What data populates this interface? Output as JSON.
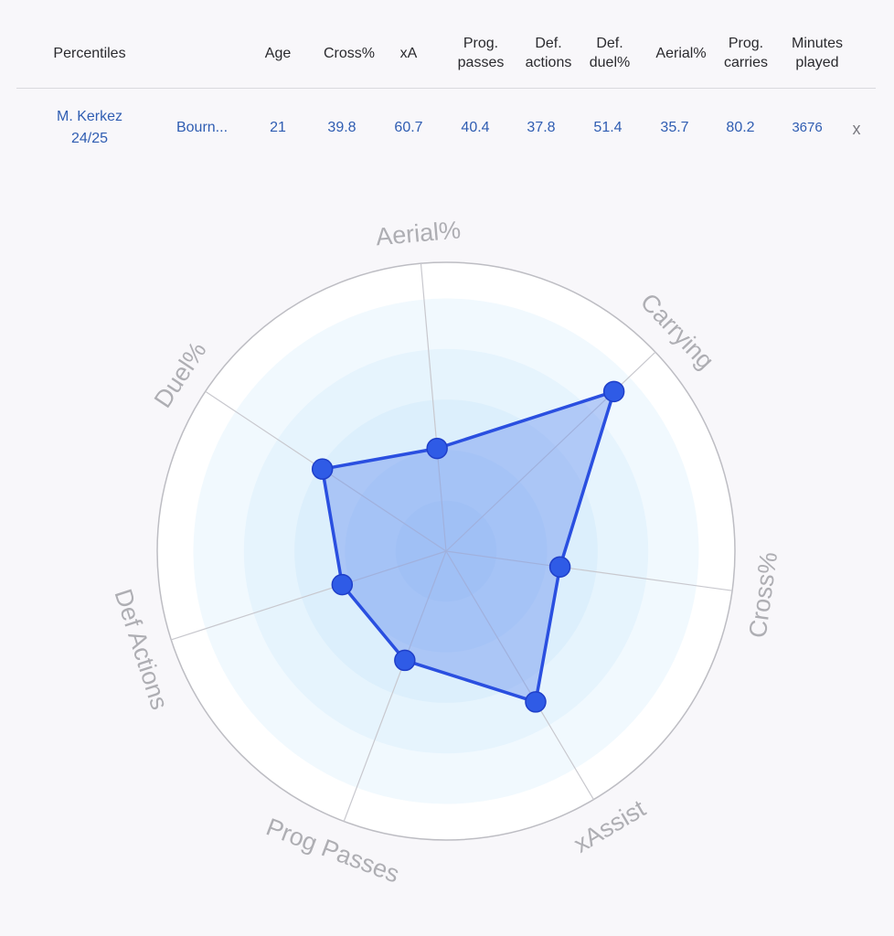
{
  "table": {
    "columns": [
      {
        "label": "Percentiles"
      },
      {
        "label": ""
      },
      {
        "label": "Age"
      },
      {
        "label": "Cross%"
      },
      {
        "label": "xA"
      },
      {
        "label": "Prog.",
        "label2": "passes"
      },
      {
        "label": "Def.",
        "label2": "actions"
      },
      {
        "label": "Def.",
        "label2": "duel%"
      },
      {
        "label": "Aerial%"
      },
      {
        "label": "Prog.",
        "label2": "carries"
      },
      {
        "label": "Minutes",
        "label2": "played"
      }
    ],
    "row": {
      "player": "M. Kerkez",
      "season": "24/25",
      "team": "Bourn...",
      "age": "21",
      "cross": "39.8",
      "xa": "60.7",
      "prog_passes": "40.4",
      "def_actions": "37.8",
      "def_duel": "51.4",
      "aerial": "35.7",
      "prog_carries": "80.2",
      "minutes": "3676",
      "remove": "x"
    }
  },
  "chart_data": {
    "type": "radar",
    "range": [
      0,
      100
    ],
    "axes": [
      "Aerial%",
      "Carrying",
      "Cross%",
      "xAssist",
      "Prog Passes",
      "Def Actions",
      "Duel%"
    ],
    "values": [
      35.7,
      80.2,
      39.8,
      60.7,
      40.4,
      37.8,
      51.4
    ],
    "rings": 5,
    "grid": true,
    "colors": {
      "line": "#2a4fe0",
      "fill": "#6f94f0",
      "point": "#2f5be6",
      "ring_bg": "#e4f3fd",
      "spoke": "#c8c8ce",
      "label": "#aeaeb3"
    }
  }
}
